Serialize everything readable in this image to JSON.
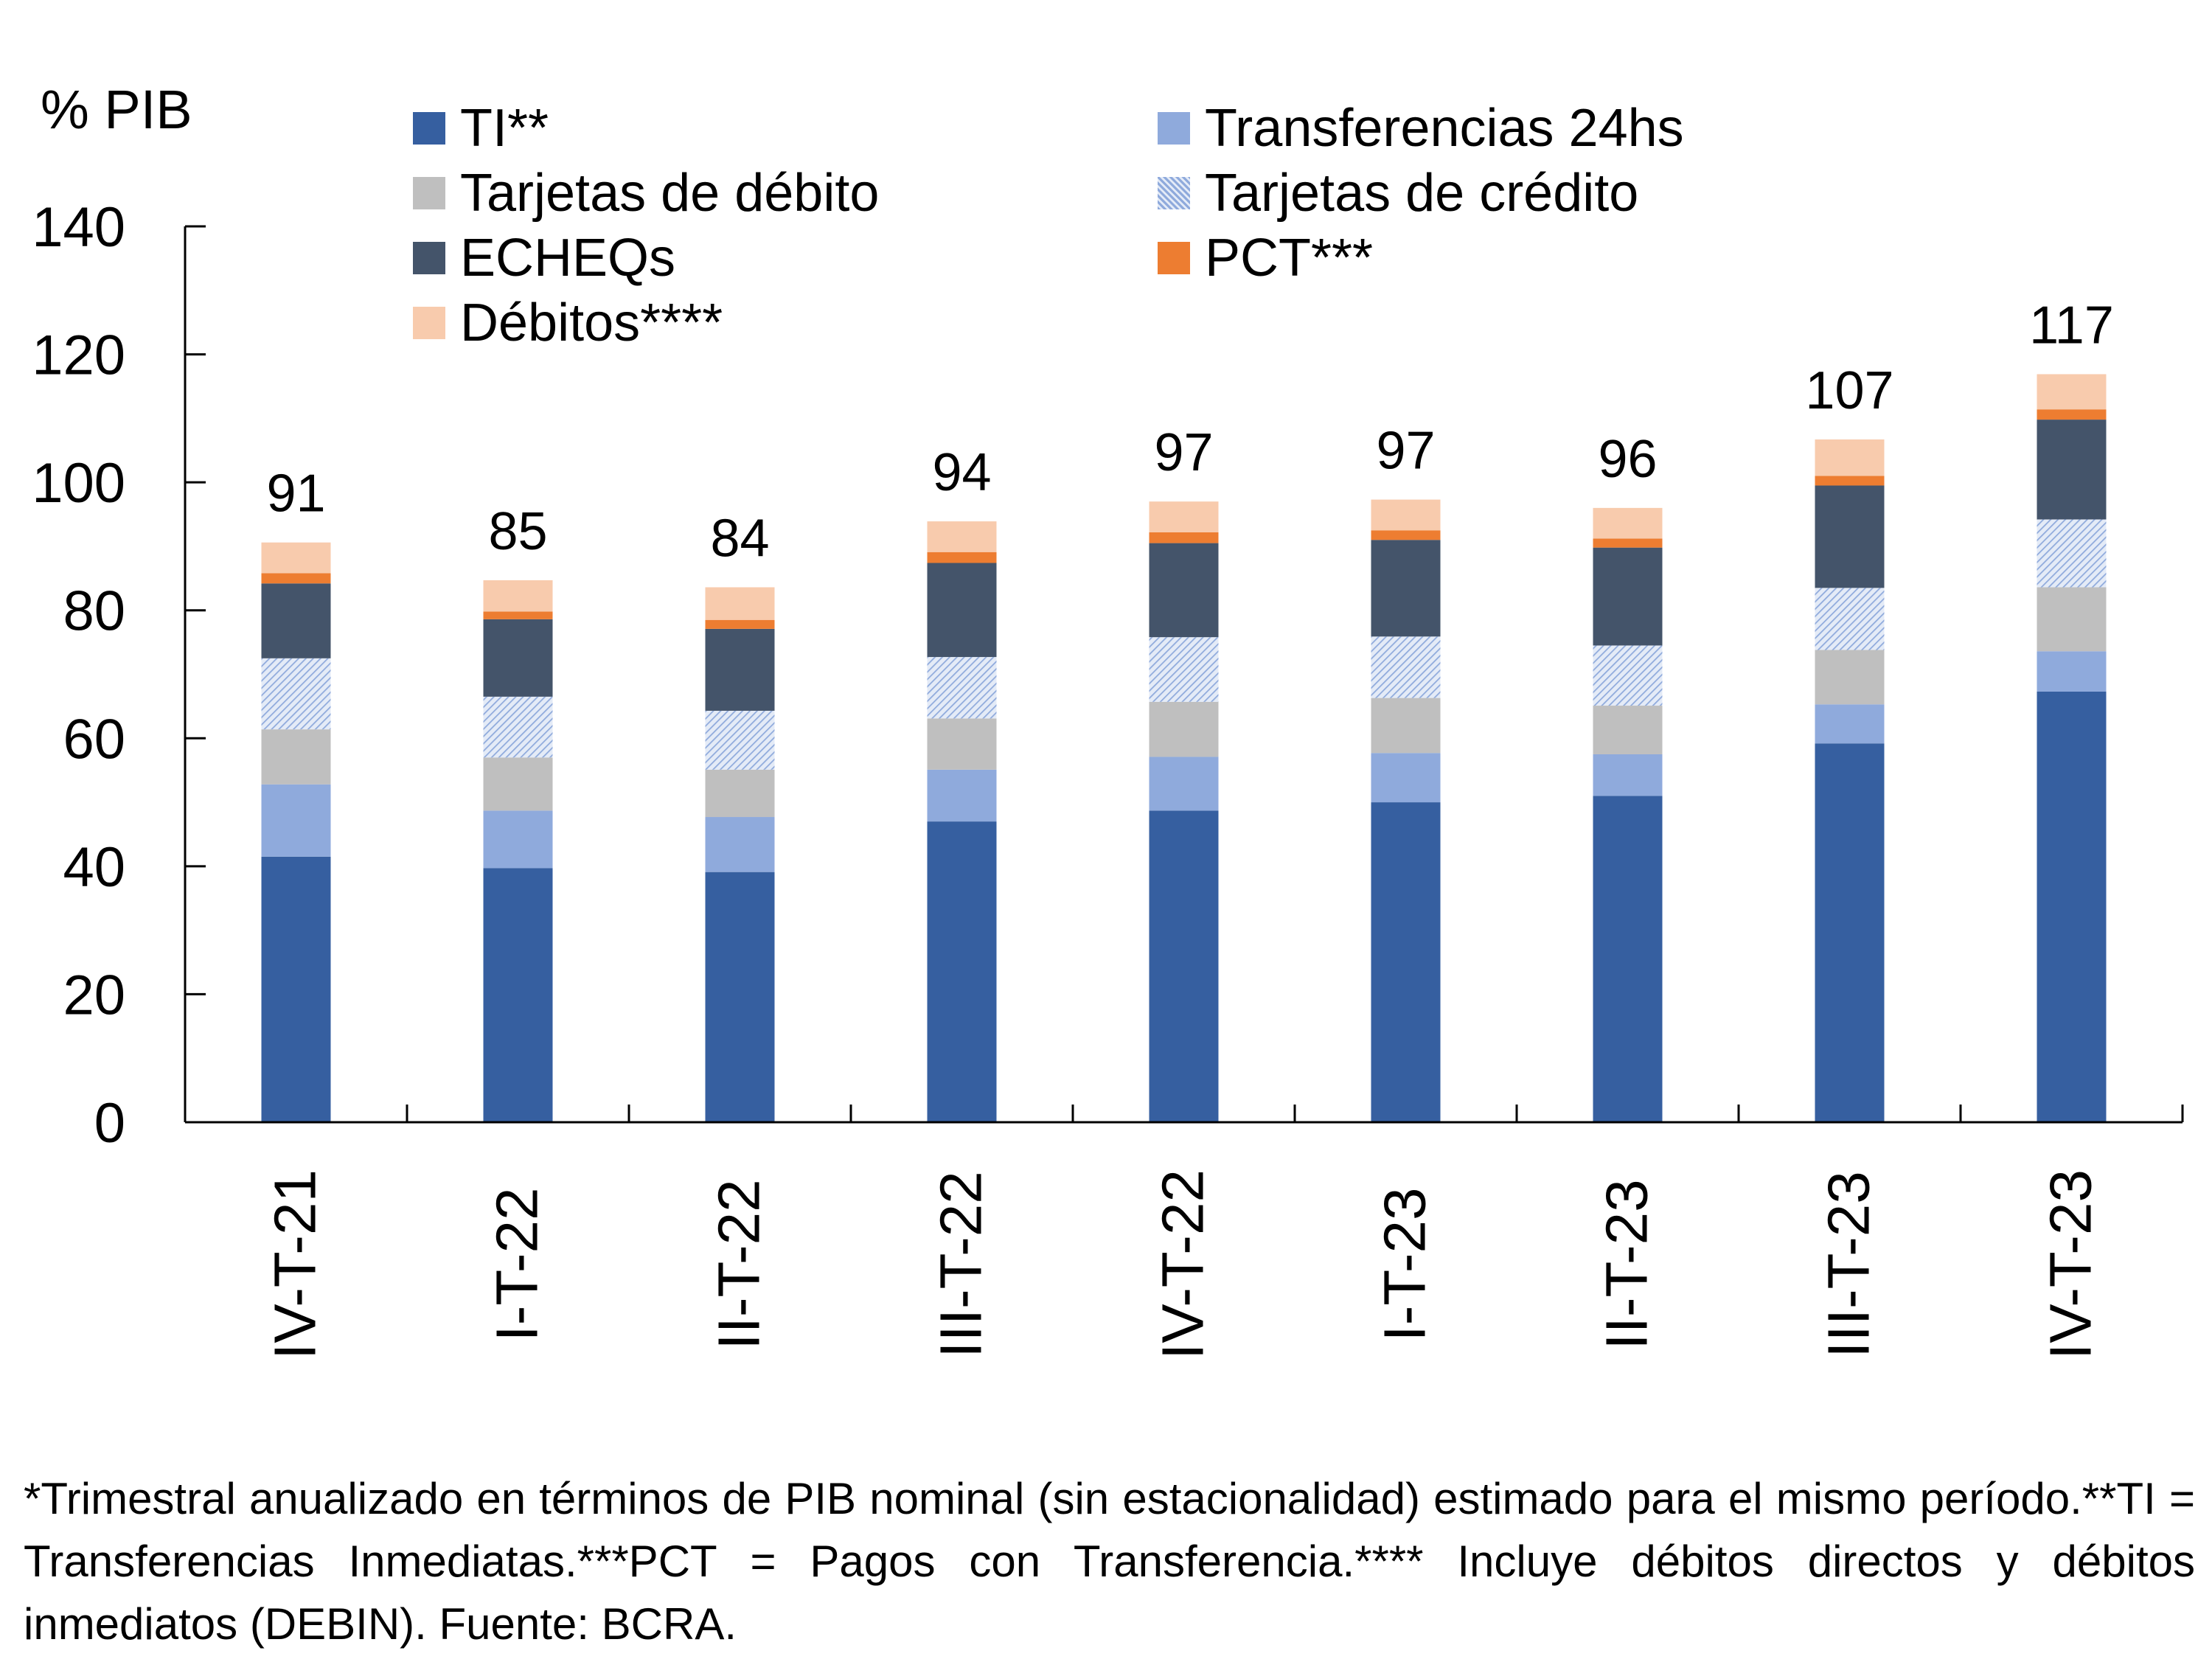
{
  "chart_data": {
    "type": "bar",
    "stacked": true,
    "title": "",
    "ylabel": "% PIB",
    "xlabel": "",
    "ylim": [
      0,
      140
    ],
    "yticks": [
      0,
      20,
      40,
      60,
      80,
      100,
      120,
      140
    ],
    "grid": false,
    "legend_position": "top",
    "categories": [
      "IV-T-21",
      "I-T-22",
      "II-T-22",
      "III-T-22",
      "IV-T-22",
      "I-T-23",
      "II-T-23",
      "III-T-23",
      "IV-T-23"
    ],
    "series": [
      {
        "name": "TI**",
        "color": "#365FA0",
        "pattern": "solid",
        "values": [
          41.5,
          39.7,
          39.1,
          47.0,
          48.7,
          50.0,
          51.0,
          59.2,
          67.3
        ]
      },
      {
        "name": "Transferencias 24hs",
        "color": "#8FAADC",
        "pattern": "solid",
        "values": [
          11.3,
          9.0,
          8.6,
          8.1,
          8.4,
          7.7,
          6.5,
          6.1,
          6.3
        ]
      },
      {
        "name": "Tarjetas de débito",
        "color": "#BFBFBF",
        "pattern": "solid",
        "values": [
          8.6,
          8.3,
          7.4,
          8.0,
          8.6,
          8.6,
          7.6,
          8.5,
          10.0
        ]
      },
      {
        "name": "Tarjetas de crédito",
        "color": "#8FAADC",
        "pattern": "hatch",
        "values": [
          11.1,
          9.5,
          9.2,
          9.6,
          10.1,
          9.6,
          9.4,
          9.7,
          10.6
        ]
      },
      {
        "name": "ECHEQs",
        "color": "#44546A",
        "pattern": "solid",
        "values": [
          11.7,
          12.1,
          12.8,
          14.7,
          14.7,
          15.1,
          15.3,
          16.0,
          15.6
        ]
      },
      {
        "name": "PCT***",
        "color": "#ED7D31",
        "pattern": "solid",
        "values": [
          1.6,
          1.2,
          1.4,
          1.7,
          1.7,
          1.5,
          1.4,
          1.5,
          1.6
        ]
      },
      {
        "name": "Débitos****",
        "color": "#F8CBAD",
        "pattern": "solid",
        "values": [
          4.8,
          4.9,
          5.1,
          4.8,
          4.8,
          4.8,
          4.8,
          5.7,
          5.5
        ]
      }
    ],
    "totals": [
      "91",
      "85",
      "84",
      "94",
      "97",
      "97",
      "96",
      "107",
      "117"
    ]
  },
  "legend": {
    "items": [
      {
        "label": "TI**",
        "color": "#365FA0",
        "pattern": "solid"
      },
      {
        "label": "Transferencias 24hs",
        "color": "#8FAADC",
        "pattern": "solid"
      },
      {
        "label": "Tarjetas de débito",
        "color": "#BFBFBF",
        "pattern": "solid"
      },
      {
        "label": "Tarjetas de crédito",
        "color": "#8FAADC",
        "pattern": "hatch"
      },
      {
        "label": "ECHEQs",
        "color": "#44546A",
        "pattern": "solid"
      },
      {
        "label": "PCT***",
        "color": "#ED7D31",
        "pattern": "solid"
      },
      {
        "label": "Débitos****",
        "color": "#F8CBAD",
        "pattern": "solid"
      }
    ]
  },
  "footnote": "*Trimestral anualizado en términos de PIB nominal (sin estacionalidad) estimado para el mismo período.**TI = Transferencias Inmediatas.***PCT = Pagos con Transferencia.**** Incluye débitos directos y débitos inmediatos (DEBIN). Fuente: BCRA."
}
